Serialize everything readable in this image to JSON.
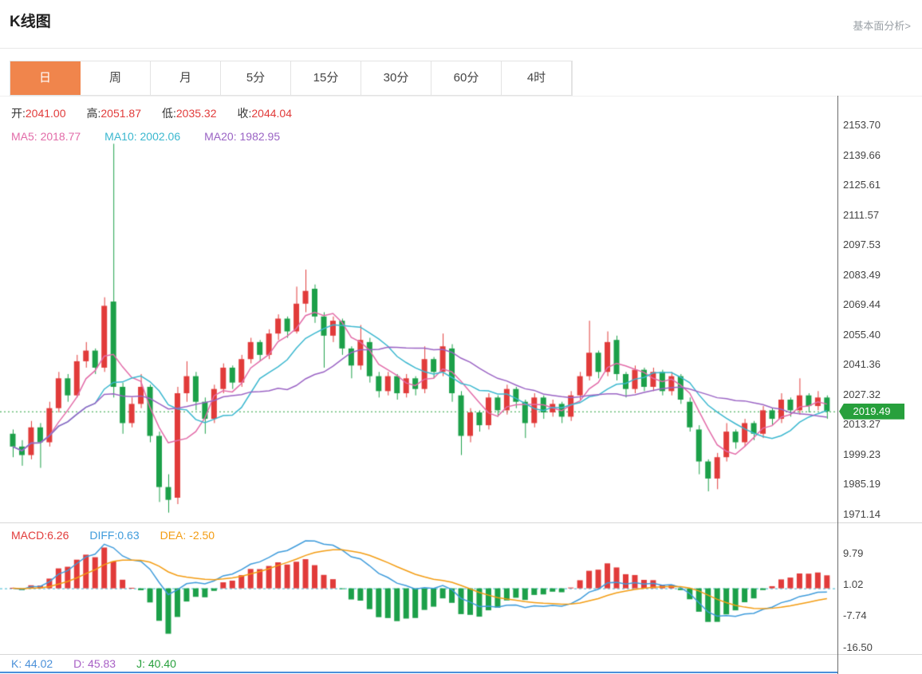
{
  "header": {
    "title": "K线图",
    "link": "基本面分析>"
  },
  "tabs": [
    {
      "label": "日",
      "active": true
    },
    {
      "label": "周",
      "active": false
    },
    {
      "label": "月",
      "active": false
    },
    {
      "label": "5分",
      "active": false
    },
    {
      "label": "15分",
      "active": false
    },
    {
      "label": "30分",
      "active": false
    },
    {
      "label": "60分",
      "active": false
    },
    {
      "label": "4时",
      "active": false
    }
  ],
  "legend": {
    "ohlc": [
      {
        "label": "开:",
        "value": "2041.00"
      },
      {
        "label": "高:",
        "value": "2051.87"
      },
      {
        "label": "低:",
        "value": "2035.32"
      },
      {
        "label": "收:",
        "value": "2044.04"
      }
    ],
    "ma": [
      {
        "text": "MA5: 2018.77"
      },
      {
        "text": "MA10: 2002.06"
      },
      {
        "text": "MA20: 1982.95"
      }
    ],
    "macd": [
      {
        "text": "MACD:6.26"
      },
      {
        "text": "DIFF:0.63"
      },
      {
        "text": "DEA: -2.50"
      }
    ],
    "kdj": [
      {
        "text": "K: 44.02"
      },
      {
        "text": "D: 45.83"
      },
      {
        "text": "J: 40.40"
      }
    ]
  },
  "chart_data": {
    "type": "candlestick",
    "timeframe": "日",
    "current_price": 2019.49,
    "ohlc_display": {
      "open": 2041.0,
      "high": 2051.87,
      "low": 2035.32,
      "close": 2044.04
    },
    "ma_values": {
      "ma5": 2018.77,
      "ma10": 2002.06,
      "ma20": 1982.95
    },
    "macd_values": {
      "macd": 6.26,
      "diff": 0.63,
      "dea": -2.5
    },
    "kdj_values": {
      "k": 44.02,
      "d": 45.83,
      "j": 40.4
    },
    "price_axis_ticks": [
      2153.7,
      2139.66,
      2125.61,
      2111.57,
      2097.53,
      2083.49,
      2069.44,
      2055.4,
      2041.36,
      2027.32,
      2013.27,
      1999.23,
      1985.19,
      1971.14
    ],
    "macd_axis_ticks": [
      9.79,
      1.02,
      -7.74,
      -16.5
    ],
    "colors": {
      "up": "#e13b3a",
      "down": "#1ca049",
      "ma5": "#e26ba8",
      "ma10": "#3ab7cf",
      "ma20": "#9a63c4",
      "diff": "#3e9bdb",
      "dea": "#f39c12",
      "macd_label": "#e13b3a",
      "price_line": "#27a03c",
      "badge_bg": "#27a03c",
      "tab_active_bg": "#f0854c",
      "kdj_k": "#4a90d9",
      "kdj_d": "#a85fc5",
      "kdj_j": "#27a03c"
    },
    "candles": [
      [
        2009,
        2011,
        1998,
        2003
      ],
      [
        2003,
        2006,
        1994,
        1999
      ],
      [
        1999,
        2015,
        1997,
        2012
      ],
      [
        2012,
        2014,
        1993,
        2005
      ],
      [
        2005,
        2024,
        2003,
        2021
      ],
      [
        2021,
        2038,
        2019,
        2035
      ],
      [
        2035,
        2037,
        2024,
        2027
      ],
      [
        2027,
        2046,
        2026,
        2043
      ],
      [
        2043,
        2052,
        2040,
        2048
      ],
      [
        2048,
        2049,
        2037,
        2040
      ],
      [
        2040,
        2073,
        2038,
        2069
      ],
      [
        2071,
        2145,
        2026,
        2031
      ],
      [
        2031,
        2033,
        2009,
        2014
      ],
      [
        2014,
        2026,
        2012,
        2023
      ],
      [
        2023,
        2037,
        2021,
        2031
      ],
      [
        2031,
        2032,
        2005,
        2008
      ],
      [
        2008,
        2010,
        1977,
        1984
      ],
      [
        1984,
        1990,
        1972,
        1978
      ],
      [
        1979,
        2031,
        1976,
        2028
      ],
      [
        2028,
        2043,
        2024,
        2036
      ],
      [
        2036,
        2038,
        2020,
        2024
      ],
      [
        2024,
        2026,
        2009,
        2016
      ],
      [
        2016,
        2032,
        2014,
        2030
      ],
      [
        2030,
        2042,
        2028,
        2040
      ],
      [
        2040,
        2041,
        2030,
        2033
      ],
      [
        2033,
        2046,
        2031,
        2044
      ],
      [
        2044,
        2054,
        2042,
        2052
      ],
      [
        2052,
        2053,
        2043,
        2046
      ],
      [
        2046,
        2058,
        2044,
        2056
      ],
      [
        2056,
        2065,
        2053,
        2063
      ],
      [
        2063,
        2064,
        2054,
        2057
      ],
      [
        2057,
        2078,
        2056,
        2070
      ],
      [
        2070,
        2086,
        2066,
        2076
      ],
      [
        2077,
        2079,
        2061,
        2064
      ],
      [
        2064,
        2066,
        2040,
        2055
      ],
      [
        2055,
        2064,
        2052,
        2062
      ],
      [
        2062,
        2063,
        2046,
        2049
      ],
      [
        2049,
        2050,
        2035,
        2041
      ],
      [
        2041,
        2060,
        2039,
        2053
      ],
      [
        2052,
        2054,
        2033,
        2036
      ],
      [
        2036,
        2038,
        2026,
        2029
      ],
      [
        2029,
        2038,
        2027,
        2036
      ],
      [
        2036,
        2037,
        2025,
        2028
      ],
      [
        2028,
        2037,
        2026,
        2035
      ],
      [
        2035,
        2036,
        2027,
        2030
      ],
      [
        2030,
        2050,
        2028,
        2044
      ],
      [
        2044,
        2045,
        2035,
        2038
      ],
      [
        2038,
        2056,
        2036,
        2050
      ],
      [
        2049,
        2051,
        2024,
        2028
      ],
      [
        2027,
        2029,
        1999,
        2008
      ],
      [
        2008,
        2021,
        2005,
        2019
      ],
      [
        2019,
        2020,
        2010,
        2013
      ],
      [
        2013,
        2028,
        2011,
        2026
      ],
      [
        2026,
        2027,
        2017,
        2020
      ],
      [
        2020,
        2032,
        2018,
        2030
      ],
      [
        2030,
        2031,
        2021,
        2024
      ],
      [
        2024,
        2025,
        2007,
        2014
      ],
      [
        2014,
        2028,
        2012,
        2026
      ],
      [
        2026,
        2027,
        2016,
        2019
      ],
      [
        2019,
        2025,
        2017,
        2023
      ],
      [
        2023,
        2024,
        2014,
        2017
      ],
      [
        2017,
        2029,
        2015,
        2027
      ],
      [
        2027,
        2038,
        2025,
        2036
      ],
      [
        2036,
        2062,
        2034,
        2047
      ],
      [
        2047,
        2048,
        2035,
        2038
      ],
      [
        2038,
        2057,
        2036,
        2052
      ],
      [
        2053,
        2055,
        2034,
        2037
      ],
      [
        2037,
        2038,
        2026,
        2030
      ],
      [
        2030,
        2041,
        2028,
        2039
      ],
      [
        2039,
        2040,
        2029,
        2031
      ],
      [
        2031,
        2040,
        2029,
        2038
      ],
      [
        2038,
        2039,
        2027,
        2029
      ],
      [
        2029,
        2038,
        2027,
        2036
      ],
      [
        2036,
        2037,
        2023,
        2025
      ],
      [
        2024,
        2026,
        2010,
        2012
      ],
      [
        2011,
        2013,
        1990,
        1996
      ],
      [
        1996,
        1997,
        1982,
        1988
      ],
      [
        1988,
        2000,
        1983,
        1998
      ],
      [
        1998,
        2014,
        1996,
        2010
      ],
      [
        2010,
        2011,
        2002,
        2005
      ],
      [
        2005,
        2016,
        2003,
        2014
      ],
      [
        2014,
        2015,
        2006,
        2009
      ],
      [
        2009,
        2022,
        2007,
        2020
      ],
      [
        2020,
        2021,
        2013,
        2016
      ],
      [
        2016,
        2028,
        2014,
        2025
      ],
      [
        2025,
        2026,
        2017,
        2020
      ],
      [
        2020,
        2035,
        2018,
        2027
      ],
      [
        2027,
        2028,
        2019,
        2022
      ],
      [
        2022,
        2029,
        2020,
        2026
      ],
      [
        2026,
        2027,
        2016,
        2019.5
      ]
    ]
  }
}
